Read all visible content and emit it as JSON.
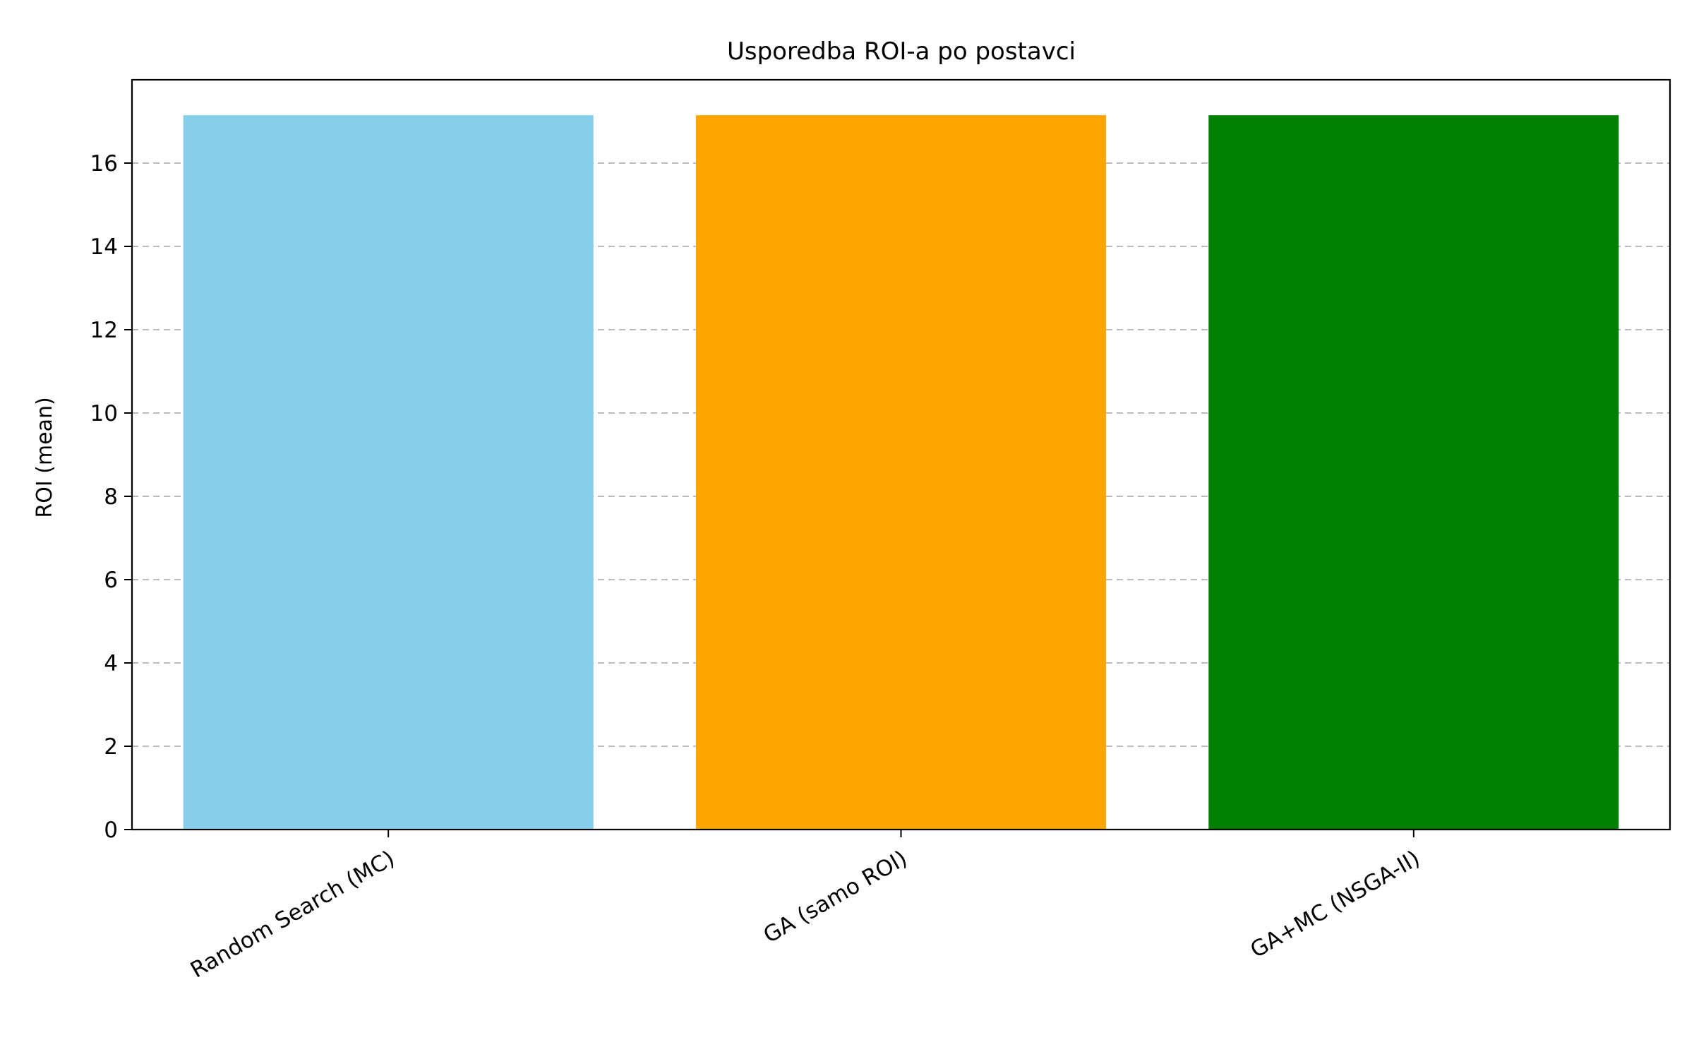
{
  "chart_data": {
    "type": "bar",
    "title": "Usporedba ROI-a po postavci",
    "xlabel": "",
    "ylabel": "ROI (mean)",
    "categories": [
      "Random Search (MC)",
      "GA (samo ROI)",
      "GA+MC (NSGA-II)"
    ],
    "values": [
      17.15,
      17.15,
      17.15
    ],
    "colors": [
      "#87CEEB",
      "#FFA500",
      "#008000"
    ],
    "ylim": [
      0,
      18
    ],
    "yticks": [
      0,
      2,
      4,
      6,
      8,
      10,
      12,
      14,
      16
    ],
    "grid": "y-dashed",
    "legend": "none"
  }
}
